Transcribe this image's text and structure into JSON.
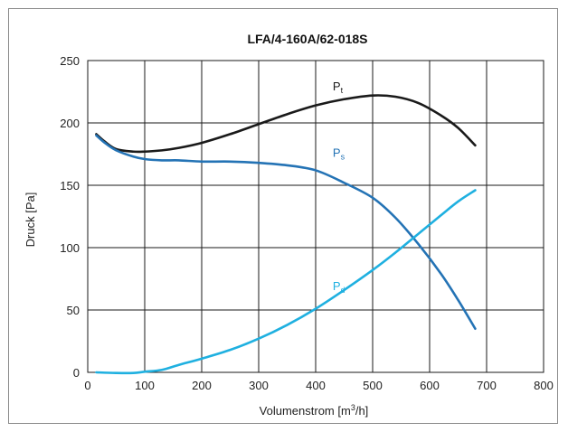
{
  "chart_data": {
    "type": "line",
    "title": "LFA/4-160A/62-018S",
    "xlabel_main": "Volumenstrom [m",
    "xlabel_sup": "3",
    "xlabel_end": "/h]",
    "ylabel": "Druck [Pa]",
    "xlim": [
      0,
      800
    ],
    "ylim": [
      0,
      250
    ],
    "xticks": [
      0,
      100,
      200,
      300,
      400,
      500,
      600,
      700,
      800
    ],
    "yticks": [
      0,
      50,
      100,
      150,
      200,
      250
    ],
    "grid": true,
    "series": [
      {
        "name_main": "P",
        "name_sub": "t",
        "color": "#1a1a1a",
        "label_at": [
          430,
          226
        ],
        "x": [
          15,
          30,
          50,
          80,
          100,
          130,
          160,
          200,
          250,
          300,
          350,
          400,
          450,
          500,
          540,
          580,
          620,
          650,
          680
        ],
        "y": [
          191,
          185,
          179,
          177,
          177,
          178,
          180,
          184,
          191,
          199,
          207,
          214,
          219,
          222,
          221,
          216,
          206,
          196,
          182
        ]
      },
      {
        "name_main": "P",
        "name_sub": "s",
        "color": "#2473b5",
        "label_at": [
          430,
          173
        ],
        "x": [
          15,
          30,
          50,
          80,
          100,
          130,
          160,
          200,
          250,
          300,
          350,
          400,
          450,
          500,
          540,
          580,
          620,
          650,
          680
        ],
        "y": [
          190,
          184,
          178,
          173,
          171,
          170,
          170,
          169,
          169,
          168,
          166,
          162,
          152,
          140,
          124,
          103,
          79,
          58,
          35
        ]
      },
      {
        "name_main": "P",
        "name_sub": "d",
        "color": "#1fb0e0",
        "label_at": [
          430,
          66
        ],
        "x": [
          15,
          50,
          80,
          100,
          130,
          160,
          200,
          250,
          300,
          350,
          400,
          450,
          500,
          540,
          580,
          620,
          650,
          680
        ],
        "y": [
          0,
          -0.5,
          -0.5,
          0.5,
          2,
          6,
          11,
          18,
          27,
          38,
          51,
          66,
          82,
          96,
          111,
          126,
          137,
          146
        ]
      }
    ]
  }
}
